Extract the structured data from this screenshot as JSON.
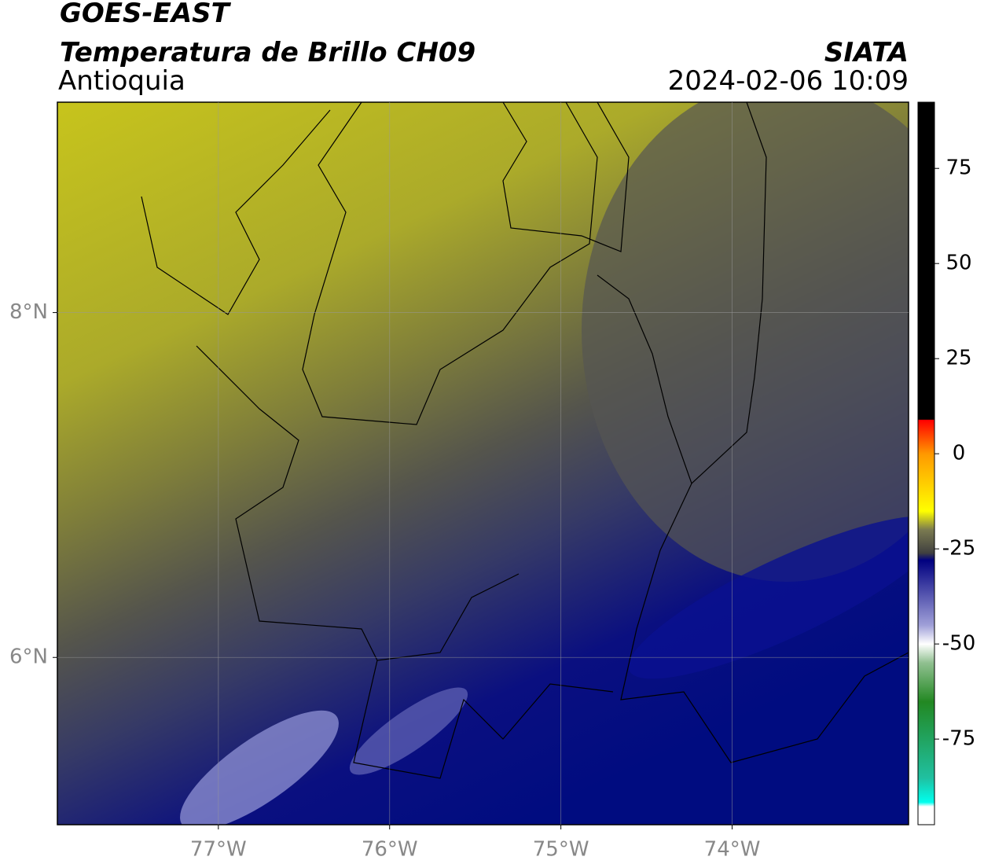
{
  "header": {
    "title": "GOES-EAST",
    "subtitle": "Temperatura de Brillo CH09",
    "source": "SIATA",
    "region": "Antioquia",
    "datetime": "2024-02-06 10:09"
  },
  "map": {
    "xlim": [
      -77.94,
      -72.97
    ],
    "ylim": [
      5.03,
      9.22
    ],
    "xticks": [
      {
        "value": -77,
        "label": "77°W"
      },
      {
        "value": -76,
        "label": "76°W"
      },
      {
        "value": -75,
        "label": "75°W"
      },
      {
        "value": -74,
        "label": "74°W"
      }
    ],
    "yticks": [
      {
        "value": 8,
        "label": "8°N"
      },
      {
        "value": 6,
        "label": "6°N"
      }
    ]
  },
  "colorbar": {
    "lim": [
      -97.5,
      92.4
    ],
    "ticks": [
      75,
      50,
      25,
      0,
      -25,
      -50,
      -75
    ]
  }
}
